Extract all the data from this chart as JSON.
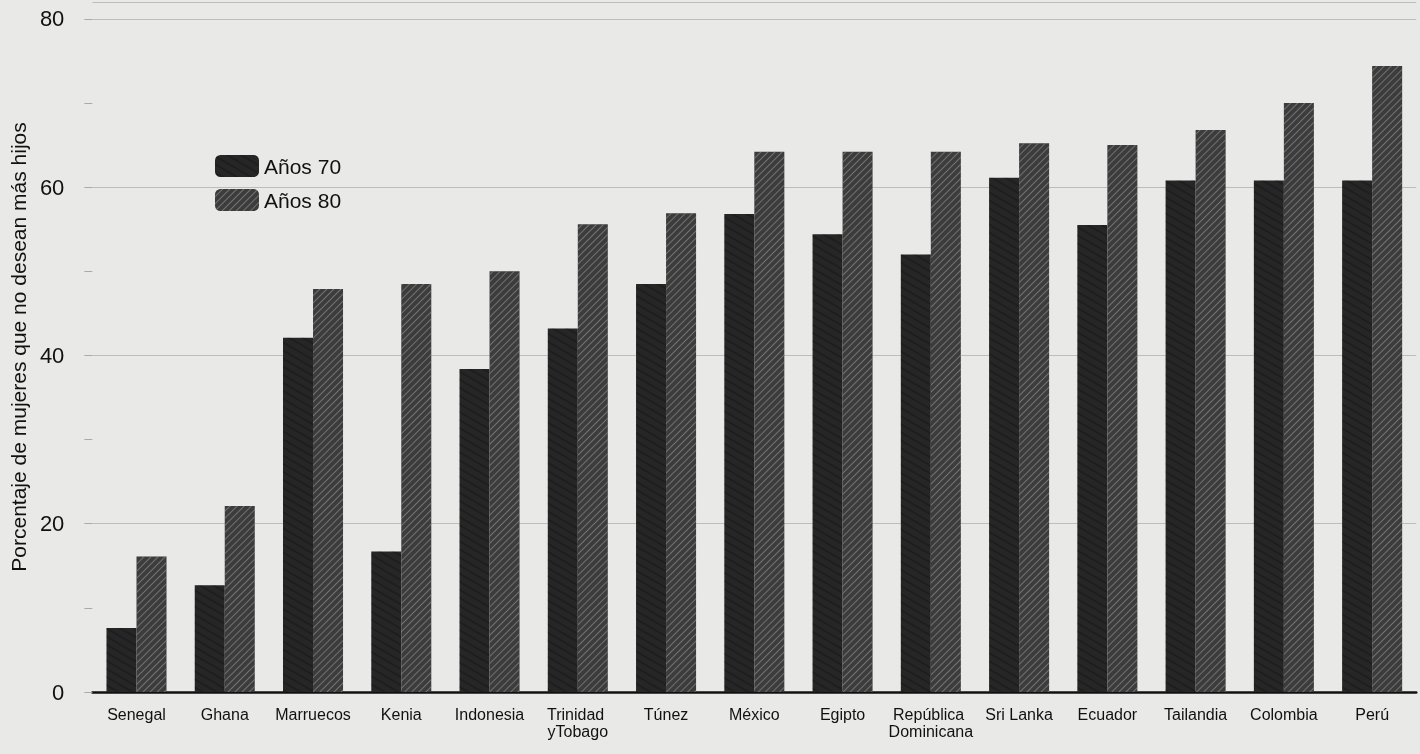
{
  "chart_data": {
    "type": "bar",
    "ylabel": "Porcentaje de mujeres que no desean más hijos",
    "categories": [
      "Senegal",
      "Ghana",
      "Marruecos",
      "Kenia",
      "Indonesia",
      "Trinidad yTobago",
      "Túnez",
      "México",
      "Egipto",
      "República Dominicana",
      "Sri Lanka",
      "Ecuador",
      "Tailandia",
      "Colombia",
      "Perú"
    ],
    "series": [
      {
        "name": "Años 70",
        "color": "#262626",
        "values": [
          7.6,
          12.7,
          42.1,
          16.7,
          38.4,
          43.2,
          48.5,
          56.8,
          54.4,
          52,
          61.1,
          55.5,
          60.8,
          60.8,
          60.8
        ]
      },
      {
        "name": "Años 80",
        "color": "#3c3c3c",
        "values": [
          16.1,
          22.1,
          47.9,
          48.5,
          50,
          55.6,
          56.9,
          64.2,
          64.2,
          64.2,
          65.2,
          65,
          66.8,
          70,
          74.4
        ]
      }
    ],
    "ylim": [
      0,
      82
    ],
    "yticks": [
      0,
      {
        "value": 10,
        "label": null
      },
      20,
      {
        "value": 30,
        "label": null
      },
      40,
      {
        "value": 50,
        "label": null
      },
      60,
      {
        "value": 70,
        "label": null
      },
      80
    ],
    "grid": "y",
    "legend": "top left"
  }
}
